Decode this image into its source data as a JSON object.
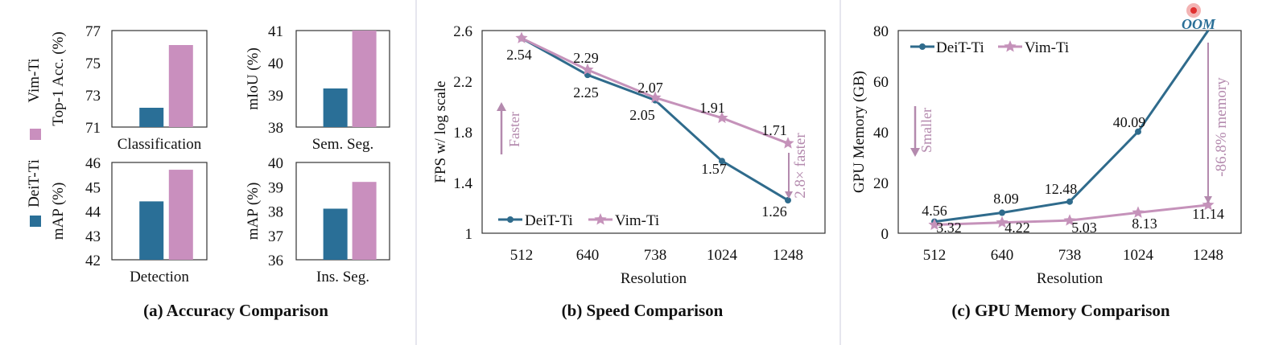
{
  "colors": {
    "deit": "#2a6f97",
    "vim": "#c98fbe",
    "vim_line": "#c592ba",
    "deit_line": "#2f6b8c",
    "annot_vim": "#b48aae",
    "oom": "#2a6f97"
  },
  "legend": {
    "deit": "DeiT-Ti",
    "vim": "Vim-Ti"
  },
  "panels": {
    "a": {
      "caption": "(a) Accuracy Comparison",
      "subplots": [
        {
          "ylabel": "Top-1 Acc. (%)",
          "xlabel": "Classification",
          "ylim": [
            71,
            77
          ],
          "ticks": [
            "71",
            "73",
            "75",
            "77"
          ],
          "tickvals": [
            71,
            73,
            75,
            77
          ],
          "deit": 72.2,
          "vim": 76.1
        },
        {
          "ylabel": "mIoU (%)",
          "xlabel": "Sem. Seg.",
          "ylim": [
            38,
            41
          ],
          "ticks": [
            "38",
            "39",
            "40",
            "41"
          ],
          "tickvals": [
            38,
            39,
            40,
            41
          ],
          "deit": 39.2,
          "vim": 41.0
        },
        {
          "ylabel": "mAP (%)",
          "xlabel": "Detection",
          "ylim": [
            42,
            46
          ],
          "ticks": [
            "42",
            "43",
            "44",
            "45",
            "46"
          ],
          "tickvals": [
            42,
            43,
            44,
            45,
            46
          ],
          "deit": 44.4,
          "vim": 45.7
        },
        {
          "ylabel": "mAP (%)",
          "xlabel": "Ins. Seg.",
          "ylim": [
            36,
            40
          ],
          "ticks": [
            "36",
            "37",
            "38",
            "39",
            "40"
          ],
          "tickvals": [
            36,
            37,
            38,
            39,
            40
          ],
          "deit": 38.1,
          "vim": 39.2
        }
      ]
    },
    "b": {
      "caption": "(b) Speed Comparison",
      "ylabel": "FPS w/ log scale",
      "xlabel": "Resolution",
      "ylim": [
        1,
        2.6
      ],
      "yticks": [
        "1",
        "1.4",
        "1.8",
        "2.2",
        "2.6"
      ],
      "ytickvals": [
        1,
        1.4,
        1.8,
        2.2,
        2.6
      ],
      "xticks": [
        "512",
        "640",
        "738",
        "1024",
        "1248"
      ],
      "deit_labels": [
        "2.54",
        "2.25",
        "2.05",
        "1.57",
        "1.26"
      ],
      "vim_labels": [
        "",
        "2.29",
        "2.07",
        "1.91",
        "1.71"
      ],
      "deit": [
        2.54,
        2.25,
        2.05,
        1.57,
        1.26
      ],
      "vim": [
        2.54,
        2.29,
        2.07,
        1.91,
        1.71
      ],
      "arrow_text": "Faster",
      "ratio_text": "2.8× faster"
    },
    "c": {
      "caption": "(c) GPU Memory Comparison",
      "ylabel": "GPU Memory (GB)",
      "xlabel": "Resolution",
      "ylim": [
        0,
        80
      ],
      "yticks": [
        "0",
        "20",
        "40",
        "60",
        "80"
      ],
      "ytickvals": [
        0,
        20,
        40,
        60,
        80
      ],
      "xticks": [
        "512",
        "640",
        "738",
        "1024",
        "1248"
      ],
      "deit_labels": [
        "4.56",
        "8.09",
        "12.48",
        "40.09",
        ""
      ],
      "vim_labels": [
        "3.32",
        "4.22",
        "5.03",
        "8.13",
        "11.14"
      ],
      "deit": [
        4.56,
        8.09,
        12.48,
        40.09,
        80
      ],
      "vim": [
        3.32,
        4.22,
        5.03,
        8.13,
        11.14
      ],
      "oom_text": "OOM",
      "arrow_text": "Smaller",
      "ratio_text": "-86.8% memory"
    }
  },
  "chart_data": [
    {
      "type": "bar",
      "title": "Classification",
      "ylabel": "Top-1 Acc. (%)",
      "categories": [
        "DeiT-Ti",
        "Vim-Ti"
      ],
      "values": [
        72.2,
        76.1
      ],
      "ylim": [
        71,
        77
      ]
    },
    {
      "type": "bar",
      "title": "Sem. Seg.",
      "ylabel": "mIoU (%)",
      "categories": [
        "DeiT-Ti",
        "Vim-Ti"
      ],
      "values": [
        39.2,
        41.0
      ],
      "ylim": [
        38,
        41
      ]
    },
    {
      "type": "bar",
      "title": "Detection",
      "ylabel": "mAP (%)",
      "categories": [
        "DeiT-Ti",
        "Vim-Ti"
      ],
      "values": [
        44.4,
        45.7
      ],
      "ylim": [
        42,
        46
      ]
    },
    {
      "type": "bar",
      "title": "Ins. Seg.",
      "ylabel": "mAP (%)",
      "categories": [
        "DeiT-Ti",
        "Vim-Ti"
      ],
      "values": [
        38.1,
        39.2
      ],
      "ylim": [
        36,
        40
      ]
    },
    {
      "type": "line",
      "title": "(b) Speed Comparison",
      "xlabel": "Resolution",
      "ylabel": "FPS w/ log scale",
      "x": [
        512,
        640,
        738,
        1024,
        1248
      ],
      "series": [
        {
          "name": "DeiT-Ti",
          "values": [
            2.54,
            2.25,
            2.05,
            1.57,
            1.26
          ]
        },
        {
          "name": "Vim-Ti",
          "values": [
            2.54,
            2.29,
            2.07,
            1.91,
            1.71
          ]
        }
      ],
      "ylim": [
        1,
        2.6
      ]
    },
    {
      "type": "line",
      "title": "(c) GPU Memory Comparison",
      "xlabel": "Resolution",
      "ylabel": "GPU Memory (GB)",
      "x": [
        512,
        640,
        738,
        1024,
        1248
      ],
      "series": [
        {
          "name": "DeiT-Ti",
          "values": [
            4.56,
            8.09,
            12.48,
            40.09,
            null
          ]
        },
        {
          "name": "Vim-Ti",
          "values": [
            3.32,
            4.22,
            5.03,
            8.13,
            11.14
          ]
        }
      ],
      "ylim": [
        0,
        80
      ]
    }
  ]
}
